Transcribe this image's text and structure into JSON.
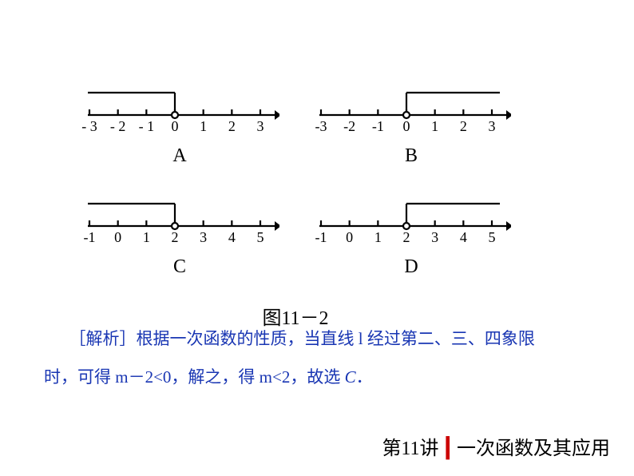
{
  "charts": {
    "A": {
      "label": "A",
      "type": "number-line",
      "ticks": [
        "- 3",
        "- 2",
        "- 1",
        "0",
        "1",
        "2",
        "3"
      ],
      "tick_positions": [
        -3,
        -2,
        -1,
        0,
        1,
        2,
        3
      ],
      "bracket_from": -3.6,
      "bracket_to": 0,
      "bracket_side": "left",
      "bracket_open_at": 0,
      "stroke_color": "#000000",
      "stroke_width": 2.2,
      "label_fontsize": 18
    },
    "B": {
      "label": "B",
      "type": "number-line",
      "ticks": [
        "-3",
        "-2",
        "-1",
        "0",
        "1",
        "2",
        "3"
      ],
      "tick_positions": [
        -3,
        -2,
        -1,
        0,
        1,
        2,
        3
      ],
      "bracket_from": 0,
      "bracket_to": 3.6,
      "bracket_side": "right",
      "bracket_open_at": 0,
      "stroke_color": "#000000",
      "stroke_width": 2.2,
      "label_fontsize": 18
    },
    "C": {
      "label": "C",
      "type": "number-line",
      "ticks": [
        "-1",
        "0",
        "1",
        "2",
        "3",
        "4",
        "5"
      ],
      "tick_positions": [
        -1,
        0,
        1,
        2,
        3,
        4,
        5
      ],
      "bracket_from": -1.6,
      "bracket_to": 2,
      "bracket_side": "left",
      "bracket_open_at": 2,
      "stroke_color": "#000000",
      "stroke_width": 2.2,
      "label_fontsize": 18
    },
    "D": {
      "label": "D",
      "type": "number-line",
      "ticks": [
        "-1",
        "0",
        "1",
        "2",
        "3",
        "4",
        "5"
      ],
      "tick_positions": [
        -1,
        0,
        1,
        2,
        3,
        4,
        5
      ],
      "bracket_from": 2,
      "bracket_to": 5.6,
      "bracket_side": "right",
      "bracket_open_at": 2,
      "stroke_color": "#000000",
      "stroke_width": 2.2,
      "label_fontsize": 18
    }
  },
  "caption": "图11－2",
  "analysis_line1": "［解析］根据一次函数的性质，当直线 l 经过第二、三、四象限",
  "analysis_line2a": "时，可得 m－2<0，解之，得 m<2，故选 ",
  "analysis_line2b": "C",
  "analysis_line2c": "．",
  "footer_lecture": "第11讲",
  "footer_bar": "┃",
  "footer_title": "一次函数及其应用",
  "colors": {
    "text_black": "#000000",
    "text_blue": "#1936b3",
    "bar_red": "#cc0000",
    "background": "#ffffff"
  }
}
